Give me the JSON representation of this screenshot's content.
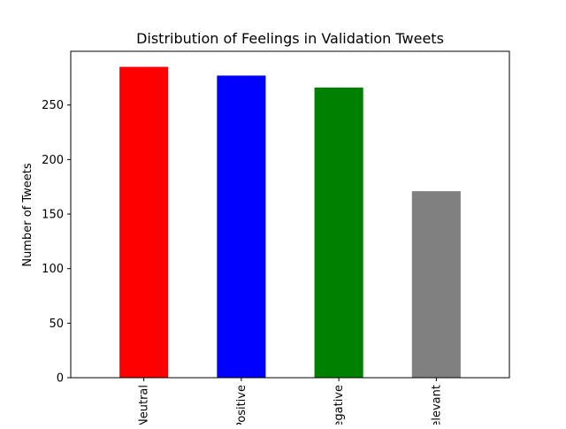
{
  "chart_data": {
    "type": "bar",
    "title": "Distribution of Feelings in Validation Tweets",
    "xlabel": "",
    "ylabel": "Number of Tweets",
    "categories": [
      "Neutral",
      "Positive",
      "Negative",
      "Irrelevant"
    ],
    "values": [
      285,
      277,
      266,
      171
    ],
    "colors": [
      "#ff0000",
      "#0000ff",
      "#008000",
      "#808080"
    ],
    "ylim": [
      0,
      299.25
    ],
    "yticks": [
      0,
      50,
      100,
      150,
      200,
      250
    ],
    "grid": false,
    "legend": "none"
  }
}
